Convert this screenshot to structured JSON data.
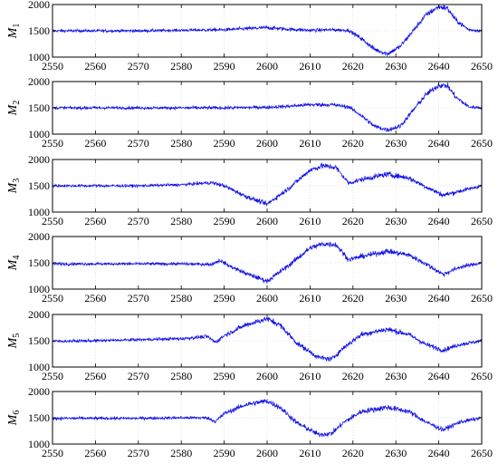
{
  "chart_data": [
    {
      "type": "line",
      "ylabel": "M",
      "ylabel_subscript": "1",
      "xlim": [
        2550,
        2650
      ],
      "ylim": [
        1000,
        2000
      ],
      "xticks": [
        "2550",
        "2560",
        "2570",
        "2580",
        "2590",
        "2600",
        "2610",
        "2620",
        "2630",
        "2640",
        "2650"
      ],
      "yticks": [
        "1000",
        "1500",
        "2000"
      ],
      "grid": true,
      "line_color": "#1010e6",
      "series": [
        {
          "x": [
            2550,
            2560,
            2570,
            2580,
            2590,
            2595,
            2600,
            2605,
            2610,
            2615,
            2619,
            2622,
            2625,
            2628,
            2631,
            2634,
            2637,
            2640,
            2642,
            2644,
            2647,
            2650
          ],
          "y": [
            1500,
            1500,
            1500,
            1510,
            1520,
            1540,
            1560,
            1530,
            1510,
            1520,
            1510,
            1350,
            1150,
            1060,
            1200,
            1500,
            1800,
            1960,
            1930,
            1700,
            1520,
            1500
          ],
          "noise": [
            80,
            80,
            80,
            80,
            90,
            100,
            110,
            100,
            100,
            90,
            90,
            120,
            130,
            130,
            130,
            140,
            150,
            160,
            160,
            140,
            100,
            90
          ]
        }
      ]
    },
    {
      "type": "line",
      "ylabel": "M",
      "ylabel_subscript": "2",
      "xlim": [
        2550,
        2650
      ],
      "ylim": [
        1000,
        2000
      ],
      "xticks": [
        "2550",
        "2560",
        "2570",
        "2580",
        "2590",
        "2600",
        "2610",
        "2620",
        "2630",
        "2640",
        "2650"
      ],
      "yticks": [
        "1000",
        "1500",
        "2000"
      ],
      "grid": true,
      "line_color": "#1010e6",
      "series": [
        {
          "x": [
            2550,
            2560,
            2570,
            2580,
            2590,
            2600,
            2605,
            2610,
            2615,
            2619,
            2622,
            2625,
            2628,
            2631,
            2634,
            2637,
            2640,
            2642,
            2644,
            2647,
            2650
          ],
          "y": [
            1500,
            1500,
            1500,
            1500,
            1500,
            1510,
            1530,
            1560,
            1560,
            1520,
            1350,
            1150,
            1080,
            1150,
            1450,
            1750,
            1930,
            1920,
            1700,
            1520,
            1500
          ],
          "noise": [
            80,
            80,
            80,
            80,
            90,
            90,
            100,
            110,
            110,
            100,
            120,
            130,
            130,
            130,
            140,
            150,
            160,
            160,
            140,
            100,
            90
          ]
        }
      ]
    },
    {
      "type": "line",
      "ylabel": "M",
      "ylabel_subscript": "3",
      "xlim": [
        2550,
        2650
      ],
      "ylim": [
        1000,
        2000
      ],
      "xticks": [
        "2550",
        "2560",
        "2570",
        "2580",
        "2590",
        "2600",
        "2610",
        "2620",
        "2630",
        "2640",
        "2650"
      ],
      "yticks": [
        "1000",
        "1500",
        "2000"
      ],
      "grid": true,
      "line_color": "#1010e6",
      "series": [
        {
          "x": [
            2550,
            2560,
            2570,
            2580,
            2587,
            2590,
            2595,
            2600,
            2605,
            2610,
            2613,
            2616,
            2619,
            2622,
            2628,
            2633,
            2637,
            2641,
            2645,
            2650
          ],
          "y": [
            1500,
            1500,
            1500,
            1520,
            1560,
            1500,
            1300,
            1150,
            1450,
            1800,
            1880,
            1850,
            1550,
            1620,
            1720,
            1650,
            1480,
            1320,
            1400,
            1500
          ],
          "noise": [
            80,
            80,
            80,
            80,
            100,
            110,
            120,
            130,
            140,
            150,
            160,
            160,
            130,
            140,
            150,
            140,
            130,
            130,
            120,
            90
          ]
        }
      ]
    },
    {
      "type": "line",
      "ylabel": "M",
      "ylabel_subscript": "4",
      "xlim": [
        2550,
        2650
      ],
      "ylim": [
        1000,
        2000
      ],
      "xticks": [
        "2550",
        "2560",
        "2570",
        "2580",
        "2590",
        "2600",
        "2610",
        "2620",
        "2630",
        "2640",
        "2650"
      ],
      "yticks": [
        "1000",
        "1500",
        "2000"
      ],
      "grid": true,
      "line_color": "#1010e6",
      "series": [
        {
          "x": [
            2550,
            2560,
            2570,
            2580,
            2587,
            2589,
            2591,
            2595,
            2600,
            2605,
            2610,
            2613,
            2616,
            2619,
            2622,
            2628,
            2633,
            2637,
            2641,
            2645,
            2650
          ],
          "y": [
            1480,
            1480,
            1480,
            1480,
            1470,
            1550,
            1450,
            1300,
            1150,
            1450,
            1780,
            1860,
            1850,
            1560,
            1620,
            1720,
            1650,
            1480,
            1280,
            1420,
            1500
          ],
          "noise": [
            80,
            80,
            80,
            80,
            90,
            110,
            110,
            120,
            130,
            140,
            150,
            160,
            160,
            130,
            140,
            150,
            140,
            130,
            130,
            120,
            90
          ]
        }
      ]
    },
    {
      "type": "line",
      "ylabel": "M",
      "ylabel_subscript": "5",
      "xlim": [
        2550,
        2650
      ],
      "ylim": [
        1000,
        2000
      ],
      "xticks": [
        "2550",
        "2560",
        "2570",
        "2580",
        "2590",
        "2600",
        "2610",
        "2620",
        "2630",
        "2640",
        "2650"
      ],
      "yticks": [
        "1000",
        "1500",
        "2000"
      ],
      "grid": true,
      "line_color": "#1010e6",
      "series": [
        {
          "x": [
            2550,
            2560,
            2570,
            2580,
            2586,
            2588,
            2590,
            2595,
            2600,
            2603,
            2607,
            2612,
            2615,
            2618,
            2622,
            2628,
            2633,
            2637,
            2641,
            2645,
            2650
          ],
          "y": [
            1490,
            1500,
            1520,
            1540,
            1580,
            1470,
            1600,
            1800,
            1920,
            1800,
            1450,
            1180,
            1150,
            1380,
            1620,
            1720,
            1620,
            1430,
            1320,
            1430,
            1500
          ],
          "noise": [
            80,
            80,
            80,
            90,
            100,
            110,
            120,
            140,
            160,
            150,
            140,
            140,
            140,
            140,
            150,
            160,
            140,
            130,
            130,
            110,
            90
          ]
        }
      ]
    },
    {
      "type": "line",
      "ylabel": "M",
      "ylabel_subscript": "6",
      "xlim": [
        2550,
        2650
      ],
      "ylim": [
        1000,
        2000
      ],
      "xticks": [
        "2550",
        "2560",
        "2570",
        "2580",
        "2590",
        "2600",
        "2610",
        "2620",
        "2630",
        "2640",
        "2650"
      ],
      "yticks": [
        "1000",
        "1500",
        "2000"
      ],
      "grid": true,
      "line_color": "#1010e6",
      "series": [
        {
          "x": [
            2550,
            2560,
            2570,
            2580,
            2586,
            2588,
            2590,
            2595,
            2600,
            2603,
            2607,
            2612,
            2615,
            2618,
            2622,
            2628,
            2633,
            2637,
            2641,
            2645,
            2650
          ],
          "y": [
            1490,
            1490,
            1490,
            1500,
            1500,
            1430,
            1580,
            1750,
            1820,
            1700,
            1400,
            1180,
            1200,
            1420,
            1620,
            1700,
            1620,
            1420,
            1270,
            1420,
            1500
          ],
          "noise": [
            80,
            80,
            80,
            80,
            90,
            100,
            120,
            140,
            160,
            150,
            140,
            140,
            140,
            140,
            150,
            160,
            140,
            130,
            130,
            110,
            90
          ]
        }
      ]
    }
  ]
}
